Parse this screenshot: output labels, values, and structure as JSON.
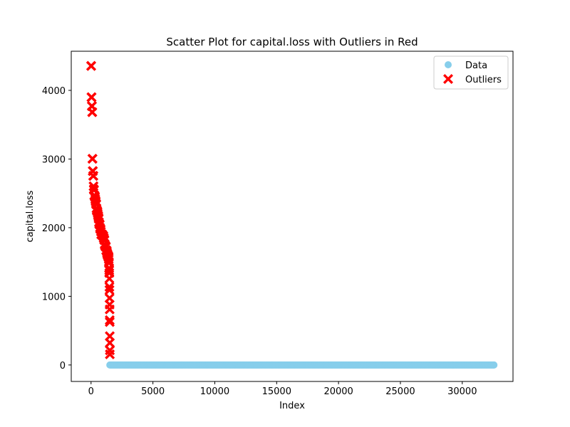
{
  "chart_data": {
    "type": "scatter",
    "title": "Scatter Plot for capital.loss with Outliers in Red",
    "xlabel": "Index",
    "ylabel": "capital.loss",
    "xlim": [
      -1600,
      34100
    ],
    "ylim": [
      -240,
      4570
    ],
    "xticks": [
      0,
      5000,
      10000,
      15000,
      20000,
      25000,
      30000
    ],
    "yticks": [
      0,
      1000,
      2000,
      3000,
      4000
    ],
    "legend_position": "top-right",
    "colors": {
      "data": "#87ceeb",
      "outliers": "#ff0000"
    },
    "series": [
      {
        "name": "Data",
        "marker": "circle",
        "x_range": [
          1519,
          32560
        ],
        "y_constant": 0
      },
      {
        "name": "Outliers",
        "marker": "x",
        "points": [
          [
            5,
            4356
          ],
          [
            15,
            4356
          ],
          [
            30,
            3900
          ],
          [
            45,
            3900
          ],
          [
            60,
            3770
          ],
          [
            75,
            3770
          ],
          [
            90,
            3683
          ],
          [
            100,
            3683
          ],
          [
            110,
            3004
          ],
          [
            120,
            3004
          ],
          [
            135,
            2824
          ],
          [
            150,
            2824
          ],
          [
            170,
            2754
          ],
          [
            190,
            2754
          ],
          [
            200,
            2603
          ],
          [
            220,
            2559
          ],
          [
            240,
            2547
          ],
          [
            260,
            2472
          ],
          [
            280,
            2467
          ],
          [
            300,
            2457
          ],
          [
            320,
            2444
          ],
          [
            340,
            2415
          ],
          [
            360,
            2392
          ],
          [
            380,
            2377
          ],
          [
            400,
            2352
          ],
          [
            420,
            2339
          ],
          [
            440,
            2282
          ],
          [
            460,
            2258
          ],
          [
            480,
            2246
          ],
          [
            500,
            2238
          ],
          [
            520,
            2231
          ],
          [
            540,
            2206
          ],
          [
            560,
            2179
          ],
          [
            580,
            2174
          ],
          [
            600,
            2149
          ],
          [
            620,
            2129
          ],
          [
            640,
            2080
          ],
          [
            660,
            2057
          ],
          [
            680,
            2051
          ],
          [
            700,
            2042
          ],
          [
            720,
            2001
          ],
          [
            740,
            1980
          ],
          [
            760,
            1977
          ],
          [
            780,
            1974
          ],
          [
            800,
            1944
          ],
          [
            820,
            1902
          ],
          [
            840,
            1902
          ],
          [
            860,
            1902
          ],
          [
            880,
            1902
          ],
          [
            900,
            1902
          ],
          [
            920,
            1887
          ],
          [
            940,
            1887
          ],
          [
            960,
            1887
          ],
          [
            980,
            1876
          ],
          [
            1000,
            1876
          ],
          [
            1020,
            1848
          ],
          [
            1040,
            1848
          ],
          [
            1060,
            1825
          ],
          [
            1080,
            1816
          ],
          [
            1100,
            1762
          ],
          [
            1120,
            1740
          ],
          [
            1140,
            1741
          ],
          [
            1160,
            1735
          ],
          [
            1180,
            1721
          ],
          [
            1200,
            1719
          ],
          [
            1220,
            1672
          ],
          [
            1240,
            1669
          ],
          [
            1260,
            1668
          ],
          [
            1280,
            1651
          ],
          [
            1300,
            1628
          ],
          [
            1320,
            1617
          ],
          [
            1340,
            1602
          ],
          [
            1360,
            1594
          ],
          [
            1380,
            1590
          ],
          [
            1400,
            1579
          ],
          [
            1410,
            1573
          ],
          [
            1420,
            1564
          ],
          [
            1430,
            1539
          ],
          [
            1440,
            1504
          ],
          [
            1450,
            1485
          ],
          [
            1460,
            1411
          ],
          [
            1465,
            1408
          ],
          [
            1470,
            1380
          ],
          [
            1475,
            1340
          ],
          [
            1480,
            1258
          ],
          [
            1485,
            1138
          ],
          [
            1490,
            1092
          ],
          [
            1495,
            974
          ],
          [
            1500,
            880
          ],
          [
            1505,
            810
          ],
          [
            1508,
            653
          ],
          [
            1511,
            625
          ],
          [
            1514,
            419
          ],
          [
            1516,
            323
          ],
          [
            1518,
            213
          ],
          [
            1519,
            155
          ]
        ]
      }
    ]
  }
}
